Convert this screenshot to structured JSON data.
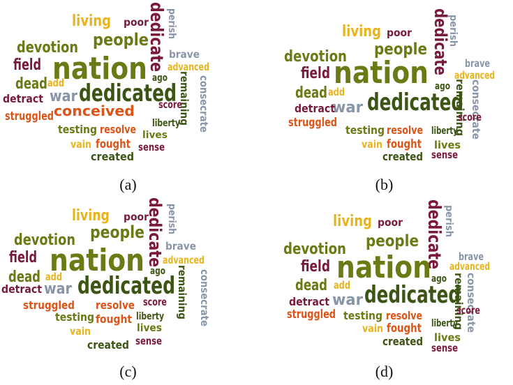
{
  "colors": {
    "olive": "#6b7a14",
    "dark_green": "#3c5414",
    "gold": "#e8b41e",
    "maroon": "#7a1a3a",
    "orange": "#dd5418",
    "gray": "#8895a8"
  },
  "panels": [
    {
      "caption": "(a)",
      "words": [
        {
          "text": "living",
          "color": "gold"
        },
        {
          "text": "poor",
          "color": "maroon"
        },
        {
          "text": "dedicate",
          "color": "maroon"
        },
        {
          "text": "perish",
          "color": "gray"
        },
        {
          "text": "people",
          "color": "olive"
        },
        {
          "text": "devotion",
          "color": "olive"
        },
        {
          "text": "brave",
          "color": "gray"
        },
        {
          "text": "field",
          "color": "maroon"
        },
        {
          "text": "nation",
          "color": "olive"
        },
        {
          "text": "advanced",
          "color": "gold"
        },
        {
          "text": "ago",
          "color": "dark_green"
        },
        {
          "text": "dead",
          "color": "olive"
        },
        {
          "text": "add",
          "color": "gold"
        },
        {
          "text": "remaining",
          "color": "dark_green"
        },
        {
          "text": "war",
          "color": "gray"
        },
        {
          "text": "dedicated",
          "color": "dark_green"
        },
        {
          "text": "consecrate",
          "color": "gray"
        },
        {
          "text": "detract",
          "color": "maroon"
        },
        {
          "text": "conceived",
          "color": "orange"
        },
        {
          "text": "score",
          "color": "maroon"
        },
        {
          "text": "struggled",
          "color": "orange"
        },
        {
          "text": "liberty",
          "color": "dark_green"
        },
        {
          "text": "testing",
          "color": "olive"
        },
        {
          "text": "resolve",
          "color": "orange"
        },
        {
          "text": "lives",
          "color": "olive"
        },
        {
          "text": "vain",
          "color": "gold"
        },
        {
          "text": "fought",
          "color": "orange"
        },
        {
          "text": "sense",
          "color": "maroon"
        },
        {
          "text": "created",
          "color": "dark_green"
        }
      ]
    },
    {
      "caption": "(b)",
      "words": [
        {
          "text": "living",
          "color": "gold"
        },
        {
          "text": "poor",
          "color": "maroon"
        },
        {
          "text": "dedicate",
          "color": "maroon"
        },
        {
          "text": "perish",
          "color": "gray"
        },
        {
          "text": "people",
          "color": "olive"
        },
        {
          "text": "devotion",
          "color": "olive"
        },
        {
          "text": "brave",
          "color": "gray"
        },
        {
          "text": "field",
          "color": "maroon"
        },
        {
          "text": "nation",
          "color": "olive"
        },
        {
          "text": "advanced",
          "color": "gold"
        },
        {
          "text": "dead",
          "color": "olive"
        },
        {
          "text": "add",
          "color": "gold"
        },
        {
          "text": "ago",
          "color": "dark_green"
        },
        {
          "text": "consecrate",
          "color": "gray"
        },
        {
          "text": "war",
          "color": "gray"
        },
        {
          "text": "dedicated",
          "color": "dark_green"
        },
        {
          "text": "remaining",
          "color": "dark_green"
        },
        {
          "text": "detract",
          "color": "maroon"
        },
        {
          "text": "score",
          "color": "maroon"
        },
        {
          "text": "struggled",
          "color": "orange"
        },
        {
          "text": "testing",
          "color": "olive"
        },
        {
          "text": "resolve",
          "color": "orange"
        },
        {
          "text": "liberty",
          "color": "dark_green"
        },
        {
          "text": "vain",
          "color": "gold"
        },
        {
          "text": "fought",
          "color": "orange"
        },
        {
          "text": "lives",
          "color": "olive"
        },
        {
          "text": "created",
          "color": "dark_green"
        },
        {
          "text": "sense",
          "color": "maroon"
        }
      ]
    },
    {
      "caption": "(c)",
      "words": [
        {
          "text": "living",
          "color": "gold"
        },
        {
          "text": "poor",
          "color": "maroon"
        },
        {
          "text": "dedicate",
          "color": "maroon"
        },
        {
          "text": "perish",
          "color": "gray"
        },
        {
          "text": "people",
          "color": "olive"
        },
        {
          "text": "devotion",
          "color": "olive"
        },
        {
          "text": "brave",
          "color": "gray"
        },
        {
          "text": "field",
          "color": "maroon"
        },
        {
          "text": "nation",
          "color": "olive"
        },
        {
          "text": "advanced",
          "color": "gold"
        },
        {
          "text": "dead",
          "color": "olive"
        },
        {
          "text": "ago",
          "color": "dark_green"
        },
        {
          "text": "add",
          "color": "gold"
        },
        {
          "text": "remaining",
          "color": "dark_green"
        },
        {
          "text": "war",
          "color": "gray"
        },
        {
          "text": "dedicated",
          "color": "dark_green"
        },
        {
          "text": "consecrate",
          "color": "gray"
        },
        {
          "text": "detract",
          "color": "maroon"
        },
        {
          "text": "struggled",
          "color": "orange"
        },
        {
          "text": "resolve",
          "color": "orange"
        },
        {
          "text": "score",
          "color": "maroon"
        },
        {
          "text": "testing",
          "color": "olive"
        },
        {
          "text": "fought",
          "color": "orange"
        },
        {
          "text": "liberty",
          "color": "dark_green"
        },
        {
          "text": "vain",
          "color": "gold"
        },
        {
          "text": "lives",
          "color": "olive"
        },
        {
          "text": "sense",
          "color": "maroon"
        },
        {
          "text": "created",
          "color": "dark_green"
        }
      ]
    },
    {
      "caption": "(d)",
      "words": [
        {
          "text": "living",
          "color": "gold"
        },
        {
          "text": "poor",
          "color": "maroon"
        },
        {
          "text": "dedicate",
          "color": "maroon"
        },
        {
          "text": "perish",
          "color": "gray"
        },
        {
          "text": "people",
          "color": "olive"
        },
        {
          "text": "devotion",
          "color": "olive"
        },
        {
          "text": "brave",
          "color": "gray"
        },
        {
          "text": "field",
          "color": "maroon"
        },
        {
          "text": "nation",
          "color": "olive"
        },
        {
          "text": "advanced",
          "color": "gold"
        },
        {
          "text": "dead",
          "color": "olive"
        },
        {
          "text": "add",
          "color": "gold"
        },
        {
          "text": "ago",
          "color": "dark_green"
        },
        {
          "text": "consecrate",
          "color": "gray"
        },
        {
          "text": "war",
          "color": "gray"
        },
        {
          "text": "dedicated",
          "color": "dark_green"
        },
        {
          "text": "remaining",
          "color": "dark_green"
        },
        {
          "text": "detract",
          "color": "maroon"
        },
        {
          "text": "score",
          "color": "maroon"
        },
        {
          "text": "struggled",
          "color": "orange"
        },
        {
          "text": "testing",
          "color": "olive"
        },
        {
          "text": "resolve",
          "color": "orange"
        },
        {
          "text": "liberty",
          "color": "dark_green"
        },
        {
          "text": "vain",
          "color": "gold"
        },
        {
          "text": "fought",
          "color": "orange"
        },
        {
          "text": "lives",
          "color": "olive"
        },
        {
          "text": "created",
          "color": "dark_green"
        },
        {
          "text": "sense",
          "color": "maroon"
        }
      ]
    }
  ]
}
